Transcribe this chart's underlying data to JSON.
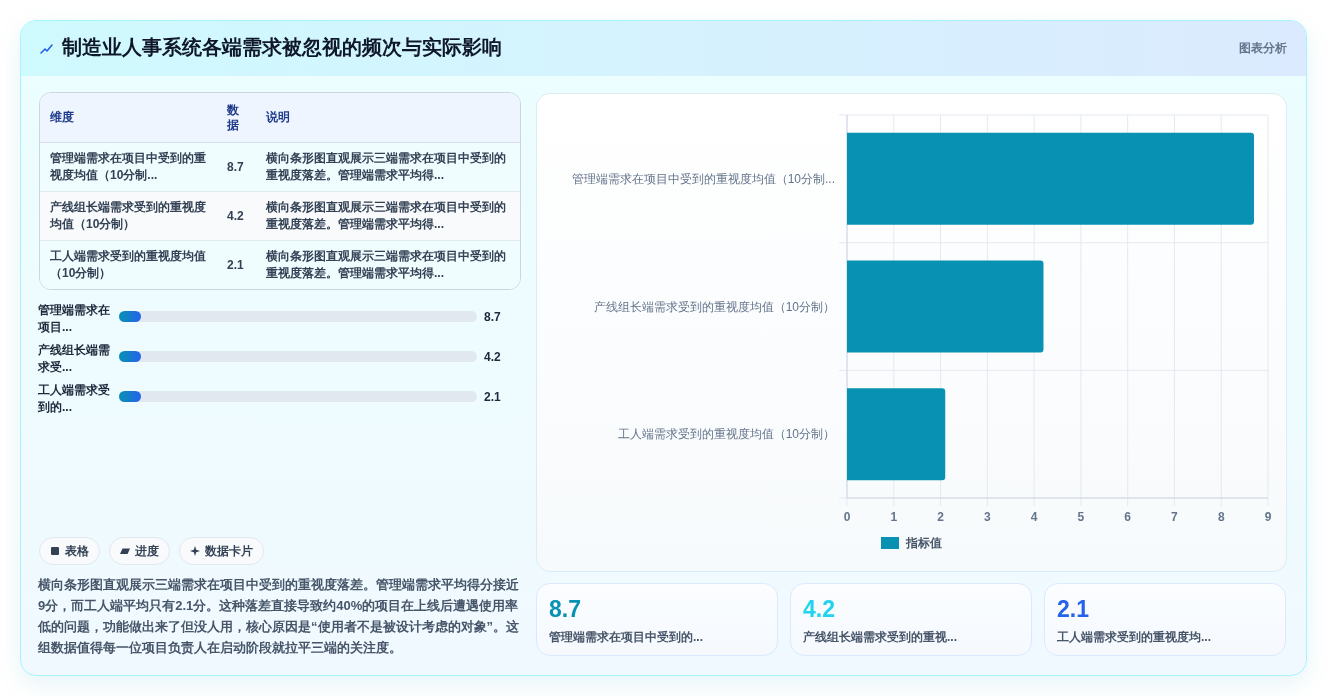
{
  "chart_data": [
    {
      "type": "other",
      "title": "制造业人事系统各端需求被忽视的频次与实际影响",
      "annotations": [
        "图表分析"
      ]
    },
    {
      "type": "other",
      "categories": [
        "管理端需求在项目中受到的重视度均值（10分制...",
        "产线组长端需求受到的重视度均值（10分制）",
        "工人端需求受到的重视度均值（10分制）"
      ],
      "values": [
        8.7,
        4.2,
        2.1
      ],
      "data_labels": true,
      "annotations": [
        "维度",
        "数据",
        "说明",
        "横向条形图直观展示三端需求在项目中受到的重视度落差。管理端需求平均得...",
        "横向条形图直观展示三端需求在项目中受到的重视度落差。管理端需求平均得...",
        "横向条形图直观展示三端需求在项目中受到的重视度落差。管理端需求平均得..."
      ]
    },
    {
      "type": "other",
      "categories": [
        "管理端需求在项目...",
        "产线组长端需求受...",
        "工人端需求受到的..."
      ],
      "values": [
        8.7,
        4.2,
        2.1
      ],
      "data_labels": true
    },
    {
      "type": "other",
      "annotations": [
        "表格",
        "进度",
        "数据卡片",
        "横向条形图直观展示三端需求在项目中受到的重视度落差。管理端需求平均得分接近9分，而工人端平均只有2.1分。这种落差直接导致约40%的项目在上线后遭遇使用率低的问题，功能做出来了但没人用，核心原因是“使用者不是被设计考虑的对象”。这组数据值得每一位项目负责人在启动阶段就拉平三端的关注度。"
      ]
    },
    {
      "type": "bar",
      "orientation": "horizontal",
      "categories": [
        "管理端需求在项目中受到的重视度均值（10分制...",
        "产线组长端需求受到的重视度均值（10分制）",
        "工人端需求受到的重视度均值（10分制）"
      ],
      "series": [
        {
          "name": "指标值",
          "color": "#0891b2",
          "values": [
            8.7,
            4.2,
            2.1
          ]
        }
      ],
      "xlim": [
        0,
        9
      ],
      "xticks": [
        0,
        1,
        2,
        3,
        4,
        5,
        6,
        7,
        8,
        9
      ],
      "grid": true,
      "legend": "bottom"
    },
    {
      "type": "other",
      "categories": [
        "管理端需求在项目中受到的...",
        "产线组长端需求受到的重视...",
        "工人端需求受到的重视度均..."
      ],
      "values": [
        8.7,
        4.2,
        2.1
      ],
      "data_labels": true
    }
  ]
}
